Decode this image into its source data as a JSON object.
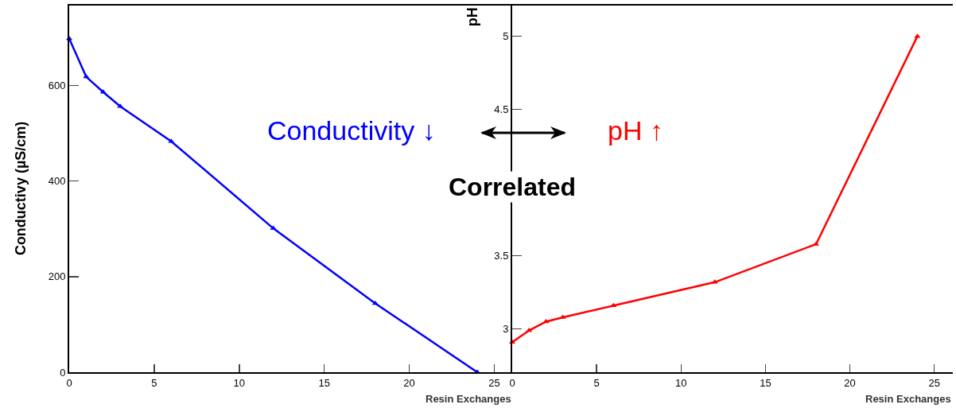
{
  "chart_data": [
    {
      "type": "line",
      "xlabel": "Resin Exchanges",
      "ylabel": "Conductivy (µS/cm)",
      "x": [
        0,
        1,
        2,
        3,
        6,
        12,
        18,
        24
      ],
      "series": [
        {
          "color": "#0000ff",
          "values": [
            698,
            618,
            586,
            556,
            483,
            301,
            144,
            0
          ]
        }
      ],
      "xlim": [
        0,
        26.1
      ],
      "xticks": [
        0,
        5,
        10,
        15,
        20,
        25
      ],
      "ylim": [
        0,
        767
      ],
      "yticks": [
        0,
        200,
        400,
        600
      ],
      "marker": "triangle",
      "line_style": "solid",
      "annotations": [
        "Conductivity ↓"
      ]
    },
    {
      "type": "line",
      "xlabel": "Resin Exchanges",
      "ylabel": "pH",
      "x": [
        0,
        1,
        2,
        3,
        6,
        12,
        18,
        24
      ],
      "series": [
        {
          "color": "#ff0000",
          "values": [
            2.91,
            2.99,
            3.05,
            3.08,
            3.16,
            3.32,
            3.58,
            5.0
          ]
        }
      ],
      "xlim": [
        0,
        26.1
      ],
      "xticks": [
        0,
        5,
        10,
        15,
        20,
        25
      ],
      "ylim": [
        2.705,
        5.21
      ],
      "yticks": [
        3,
        3.5,
        4.5,
        5
      ],
      "marker": "triangle",
      "line_style": "solid",
      "annotations": [
        "pH ↑",
        "Correlated"
      ]
    }
  ]
}
